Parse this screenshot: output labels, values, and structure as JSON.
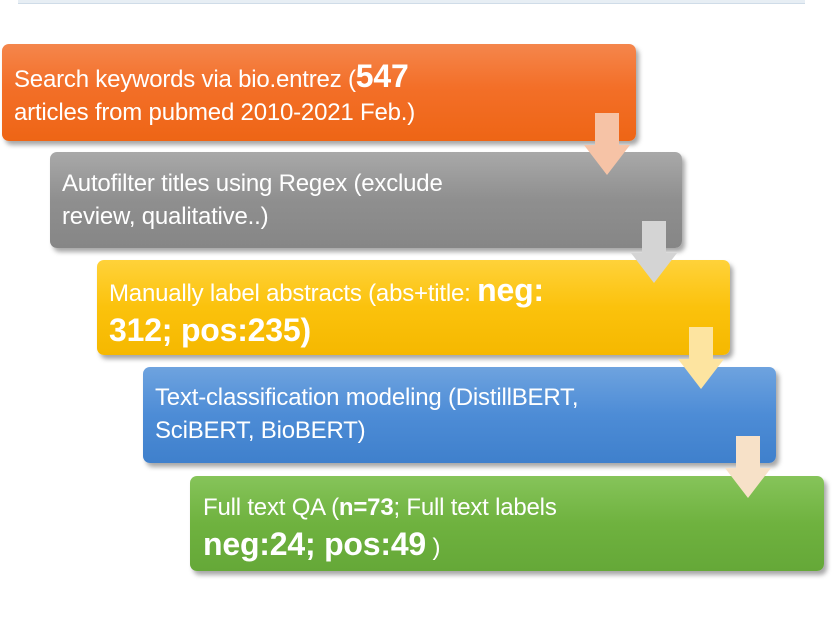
{
  "steps": [
    {
      "line1_pre": "Search keywords  via bio.entrez (",
      "line1_big": "547",
      "line2": "articles from pubmed 2010-2021 Feb.)",
      "color": "#f36f28"
    },
    {
      "line1": "Autofilter titles using Regex (exclude",
      "line2": "review, qualitative..)",
      "color": "#8f8f8f"
    },
    {
      "line1_pre": "Manually label abstracts (abs+title: ",
      "line1_big": "neg:",
      "line2_big": "312; pos:235)",
      "color": "#fbc20c"
    },
    {
      "line1": "Text-classification modeling (DistillBERT,",
      "line2": "SciBERT, BioBERT)",
      "color": "#4d8cd6"
    },
    {
      "line1_pre": "Full text QA (",
      "line1_bold": "n=73",
      "line1_post": "; Full text labels",
      "line2_big": "neg:24; pos:49",
      "line2_post": " )",
      "color": "#6fb23f"
    }
  ],
  "arrow_colors": [
    "#f6c3a6",
    "#d4d4d4",
    "#fde4a0",
    "#f7e1c8",
    "#cfe3f5"
  ]
}
